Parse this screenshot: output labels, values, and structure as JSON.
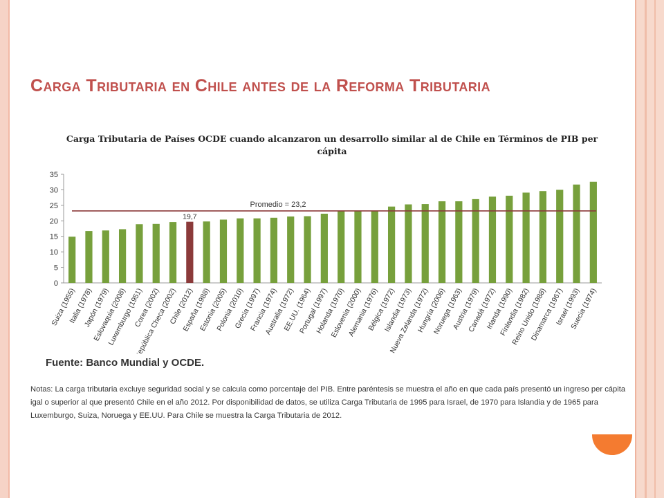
{
  "slide": {
    "title": "Carga Tributaria en Chile antes de la Reforma Tributaria",
    "chart_title": "Carga Tributaria de Países OCDE cuando alcanzaron un desarrollo similar al de Chile en Términos de PIB per cápita",
    "source": "Fuente: Banco Mundial y OCDE.",
    "notes": "Notas: La carga tributaria excluye seguridad social y se calcula como porcentaje del PIB. Entre paréntesis se muestra el año en que cada país presentó un ingreso per cápita igal o superior al que presentó Chile en el año 2012. Por disponibilidad de datos, se utiliza Carga Tributaria de 1995 para Israel, de 1970 para Islandia y de 1965 para Luxemburgo, Suiza, Noruega y EE.UU. Para Chile se muestra la Carga Tributaria de 2012."
  },
  "colors": {
    "title": "#c0504d",
    "bar": "#77a03c",
    "highlight": "#8b3a3a",
    "average_line": "#8b3a3a",
    "accent_circle": "#f47b30"
  },
  "chart_data": {
    "type": "bar",
    "title": "Carga Tributaria de Países OCDE cuando alcanzaron un desarrollo similar al de Chile en Términos de PIB per cápita",
    "xlabel": "",
    "ylabel": "",
    "ylim": [
      0,
      35
    ],
    "yticks": [
      0,
      5,
      10,
      15,
      20,
      25,
      30,
      35
    ],
    "grid": false,
    "categories": [
      "Suiza (1955)",
      "Italia (1978)",
      "Japón (1979)",
      "Eslovaquia (2008)",
      "Luxemburgo (1951)",
      "Corea (2002)",
      "República Checa (2002)",
      "Chile (2012)",
      "España (1988)",
      "Estonia (2005)",
      "Polonia (2010)",
      "Grecia (1997)",
      "Francia (1974)",
      "Australia (1972)",
      "EE.UU. (1964)",
      "Portugal (1997)",
      "Holanda (1970)",
      "Eslovenia (2000)",
      "Alemania (1976)",
      "Bélgica (1972)",
      "Islandia (1973)",
      "Nueva Zelanda (1972)",
      "Hungría (2006)",
      "Noruega (1963)",
      "Austria (1979)",
      "Canadá (1972)",
      "Irlanda (1990)",
      "Finlandia (1982)",
      "Reino Unido (1988)",
      "Dinamarca (1967)",
      "Israel (1993)",
      "Suecia (1974)"
    ],
    "values": [
      14.9,
      16.7,
      16.9,
      17.3,
      18.9,
      19.0,
      19.6,
      19.7,
      19.8,
      20.4,
      20.8,
      20.8,
      21.0,
      21.4,
      21.5,
      22.3,
      23.1,
      23.1,
      23.2,
      24.6,
      25.3,
      25.4,
      26.3,
      26.3,
      27.0,
      27.8,
      28.1,
      29.1,
      29.6,
      30.0,
      31.7,
      32.6
    ],
    "highlight_index": 7,
    "highlight_label": "19,7",
    "average": {
      "label": "Promedio = 23,2",
      "value": 23.2
    }
  }
}
